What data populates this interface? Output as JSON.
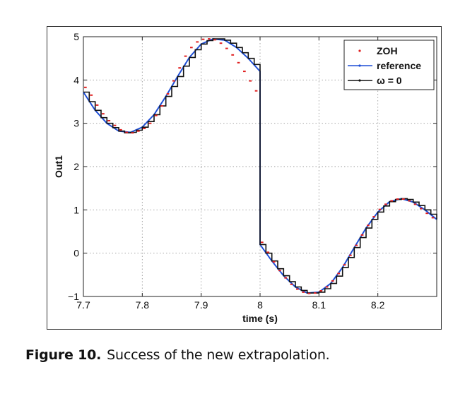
{
  "figure": {
    "label": "Figure 10.",
    "caption": "Success of the new extrapolation."
  },
  "colors": {
    "zoh": "#e02020",
    "reference": "#1f4fd6",
    "omega0": "#111111",
    "grid": "#9a9a9a"
  },
  "chart_data": {
    "type": "line",
    "title": "",
    "xlabel": "time (s)",
    "ylabel": "Out1",
    "xlim": [
      7.7,
      8.3
    ],
    "ylim": [
      -1,
      5
    ],
    "xticks": [
      7.7,
      7.8,
      7.9,
      8.0,
      8.1,
      8.2
    ],
    "xtick_labels": [
      "7.7",
      "7.8",
      "7.9",
      "8",
      "8.1",
      "8.2"
    ],
    "yticks": [
      -1,
      0,
      1,
      2,
      3,
      4,
      5
    ],
    "ytick_labels": [
      "−1",
      "0",
      "1",
      "2",
      "3",
      "4",
      "5"
    ],
    "grid": true,
    "legend_position": "top-right",
    "series": [
      {
        "name": "ZOH",
        "style": "red dashes",
        "x": [
          7.7,
          7.71,
          7.72,
          7.73,
          7.74,
          7.75,
          7.76,
          7.77,
          7.78,
          7.79,
          7.8,
          7.81,
          7.82,
          7.83,
          7.84,
          7.85,
          7.86,
          7.87,
          7.88,
          7.89,
          7.9,
          7.91,
          7.92,
          7.93,
          7.94,
          7.95,
          7.96,
          7.97,
          7.98,
          7.99,
          8.0,
          8.01,
          8.02,
          8.03,
          8.04,
          8.05,
          8.06,
          8.07,
          8.08,
          8.09,
          8.1,
          8.11,
          8.12,
          8.13,
          8.14,
          8.15,
          8.16,
          8.17,
          8.18,
          8.19,
          8.2,
          8.21,
          8.22,
          8.23,
          8.24,
          8.25,
          8.26,
          8.27,
          8.28,
          8.29
        ],
        "y": [
          3.83,
          3.65,
          3.42,
          3.22,
          3.06,
          2.95,
          2.85,
          2.79,
          2.78,
          2.82,
          2.88,
          3.0,
          3.18,
          3.4,
          3.68,
          3.98,
          4.28,
          4.55,
          4.75,
          4.88,
          4.94,
          4.95,
          4.93,
          4.85,
          4.73,
          4.58,
          4.4,
          4.2,
          3.98,
          3.75,
          0.25,
          0.02,
          -0.2,
          -0.4,
          -0.57,
          -0.72,
          -0.83,
          -0.9,
          -0.93,
          -0.92,
          -0.87,
          -0.78,
          -0.64,
          -0.47,
          -0.27,
          -0.05,
          0.18,
          0.42,
          0.64,
          0.84,
          1.01,
          1.13,
          1.21,
          1.25,
          1.25,
          1.21,
          1.13,
          1.03,
          0.92,
          0.82
        ]
      },
      {
        "name": "reference",
        "style": "blue line",
        "x": [
          7.7,
          7.72,
          7.74,
          7.76,
          7.78,
          7.8,
          7.82,
          7.84,
          7.86,
          7.88,
          7.9,
          7.92,
          7.94,
          7.96,
          7.98,
          8.0,
          8.0,
          8.02,
          8.04,
          8.06,
          8.08,
          8.1,
          8.12,
          8.14,
          8.16,
          8.18,
          8.2,
          8.22,
          8.24,
          8.26,
          8.28,
          8.3
        ],
        "y": [
          3.72,
          3.3,
          3.0,
          2.82,
          2.79,
          2.91,
          3.2,
          3.62,
          4.08,
          4.52,
          4.83,
          4.95,
          4.92,
          4.75,
          4.5,
          4.2,
          0.2,
          -0.18,
          -0.52,
          -0.78,
          -0.92,
          -0.9,
          -0.7,
          -0.33,
          0.13,
          0.58,
          0.95,
          1.19,
          1.26,
          1.18,
          1.0,
          0.78
        ]
      },
      {
        "name": "ω = 0",
        "style": "black staircase",
        "x": [
          7.7,
          7.71,
          7.72,
          7.73,
          7.74,
          7.75,
          7.76,
          7.77,
          7.78,
          7.79,
          7.8,
          7.81,
          7.82,
          7.83,
          7.84,
          7.85,
          7.86,
          7.87,
          7.88,
          7.89,
          7.9,
          7.91,
          7.92,
          7.93,
          7.94,
          7.95,
          7.96,
          7.97,
          7.98,
          7.99,
          8.0,
          8.01,
          8.02,
          8.03,
          8.04,
          8.05,
          8.06,
          8.07,
          8.08,
          8.09,
          8.1,
          8.11,
          8.12,
          8.13,
          8.14,
          8.15,
          8.16,
          8.17,
          8.18,
          8.19,
          8.2,
          8.21,
          8.22,
          8.23,
          8.24,
          8.25,
          8.26,
          8.27,
          8.28,
          8.29,
          8.3
        ],
        "y": [
          3.72,
          3.5,
          3.3,
          3.13,
          3.0,
          2.9,
          2.82,
          2.78,
          2.79,
          2.84,
          2.91,
          3.04,
          3.2,
          3.4,
          3.62,
          3.85,
          4.08,
          4.32,
          4.52,
          4.7,
          4.83,
          4.91,
          4.95,
          4.95,
          4.92,
          4.85,
          4.75,
          4.63,
          4.5,
          4.36,
          0.2,
          0.0,
          -0.18,
          -0.36,
          -0.52,
          -0.66,
          -0.78,
          -0.86,
          -0.92,
          -0.92,
          -0.9,
          -0.82,
          -0.7,
          -0.53,
          -0.33,
          -0.1,
          0.13,
          0.36,
          0.58,
          0.78,
          0.95,
          1.09,
          1.19,
          1.24,
          1.26,
          1.24,
          1.18,
          1.1,
          1.0,
          0.9,
          0.78
        ]
      }
    ]
  }
}
